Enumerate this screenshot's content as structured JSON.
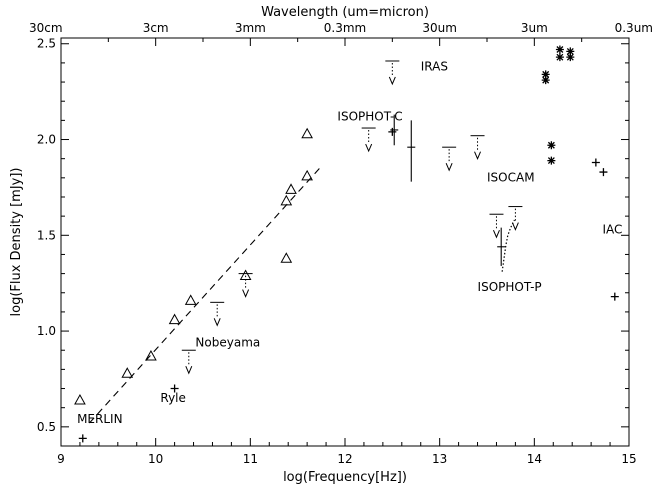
{
  "chart_data": {
    "type": "scatter",
    "title": "",
    "xlabel": "log(Frequency[Hz])",
    "ylabel": "log(Flux Density [mJy])",
    "top_axis_label": "Wavelength (um=micron)",
    "xlim": [
      9,
      15
    ],
    "ylim": [
      0.4,
      2.53
    ],
    "x_ticks": [
      9,
      10,
      11,
      12,
      13,
      14,
      15
    ],
    "x_tick_labels": [
      "9",
      "10",
      "11",
      "12",
      "13",
      "14",
      "15"
    ],
    "y_ticks": [
      0.5,
      1.0,
      1.5,
      2.0,
      2.5
    ],
    "y_tick_labels": [
      "0.5",
      "1.0",
      "1.5",
      "2.0",
      "2.5"
    ],
    "top_ticks": [
      {
        "x": 9.0,
        "label": "30cm"
      },
      {
        "x": 10.0,
        "label": "3cm"
      },
      {
        "x": 11.0,
        "label": "3mm"
      },
      {
        "x": 12.0,
        "label": "0.3mm"
      },
      {
        "x": 13.0,
        "label": "30um"
      },
      {
        "x": 14.0,
        "label": "3um"
      },
      {
        "x": 15.0,
        "label": "0.3um"
      }
    ],
    "grid": false,
    "series": [
      {
        "marker": "triangle",
        "points": [
          {
            "x": 9.2,
            "y": 0.64
          },
          {
            "x": 9.7,
            "y": 0.78
          },
          {
            "x": 9.95,
            "y": 0.87
          },
          {
            "x": 10.2,
            "y": 1.06
          },
          {
            "x": 10.37,
            "y": 1.16
          },
          {
            "x": 10.95,
            "y": 1.29
          },
          {
            "x": 11.38,
            "y": 1.38
          },
          {
            "x": 11.38,
            "y": 1.68
          },
          {
            "x": 11.43,
            "y": 1.74
          },
          {
            "x": 11.6,
            "y": 2.03
          },
          {
            "x": 11.6,
            "y": 1.81
          }
        ]
      },
      {
        "marker": "plus",
        "points": [
          {
            "x": 9.23,
            "y": 0.44
          },
          {
            "x": 10.2,
            "y": 0.7
          },
          {
            "x": 12.5,
            "y": 2.04
          },
          {
            "x": 14.65,
            "y": 1.88
          },
          {
            "x": 14.73,
            "y": 1.83
          },
          {
            "x": 14.85,
            "y": 1.18
          }
        ]
      },
      {
        "marker": "asterisk",
        "points": [
          {
            "x": 14.12,
            "y": 2.34
          },
          {
            "x": 14.12,
            "y": 2.31
          },
          {
            "x": 14.27,
            "y": 2.47
          },
          {
            "x": 14.27,
            "y": 2.43
          },
          {
            "x": 14.38,
            "y": 2.46
          },
          {
            "x": 14.38,
            "y": 2.43
          },
          {
            "x": 14.18,
            "y": 1.97
          },
          {
            "x": 14.18,
            "y": 1.89
          }
        ]
      },
      {
        "marker": "upper-limit",
        "points": [
          {
            "x": 10.35,
            "y": 0.9
          },
          {
            "x": 10.65,
            "y": 1.15
          },
          {
            "x": 10.95,
            "y": 1.3
          },
          {
            "x": 12.25,
            "y": 2.06
          },
          {
            "x": 12.5,
            "y": 2.41
          },
          {
            "x": 13.1,
            "y": 1.96
          },
          {
            "x": 13.4,
            "y": 2.02
          },
          {
            "x": 13.6,
            "y": 1.61
          },
          {
            "x": 13.8,
            "y": 1.65
          }
        ]
      },
      {
        "marker": "error-bar",
        "points": [
          {
            "x": 12.52,
            "y": 2.05,
            "ylow": 1.97,
            "yhigh": 2.13
          },
          {
            "x": 12.7,
            "y": 1.96,
            "ylow": 1.78,
            "yhigh": 2.1
          },
          {
            "x": 13.65,
            "y": 1.44,
            "ylow": 1.34,
            "yhigh": 1.54
          }
        ]
      },
      {
        "marker": "dotted-curve",
        "points": [
          {
            "x": 13.66,
            "y": 1.31
          },
          {
            "x": 13.68,
            "y": 1.38
          },
          {
            "x": 13.7,
            "y": 1.45
          },
          {
            "x": 13.72,
            "y": 1.5
          },
          {
            "x": 13.75,
            "y": 1.54
          },
          {
            "x": 13.77,
            "y": 1.56
          },
          {
            "x": 13.79,
            "y": 1.58
          }
        ]
      }
    ],
    "fit_line": {
      "style": "dashed",
      "points": [
        {
          "x": 9.3,
          "y": 0.52
        },
        {
          "x": 11.75,
          "y": 1.86
        }
      ]
    },
    "annotations": [
      {
        "text": "MERLIN",
        "x": 9.17,
        "y": 0.52
      },
      {
        "text": "Ryle",
        "x": 10.05,
        "y": 0.63
      },
      {
        "text": "Nobeyama",
        "x": 10.42,
        "y": 0.92
      },
      {
        "text": "IRAS",
        "x": 12.8,
        "y": 2.36
      },
      {
        "text": "ISOPHOT-C",
        "x": 11.92,
        "y": 2.1
      },
      {
        "text": "ISOCAM",
        "x": 13.5,
        "y": 1.78
      },
      {
        "text": "ISOPHOT-P",
        "x": 13.4,
        "y": 1.21
      },
      {
        "text": "IAC",
        "x": 14.72,
        "y": 1.51
      }
    ]
  }
}
